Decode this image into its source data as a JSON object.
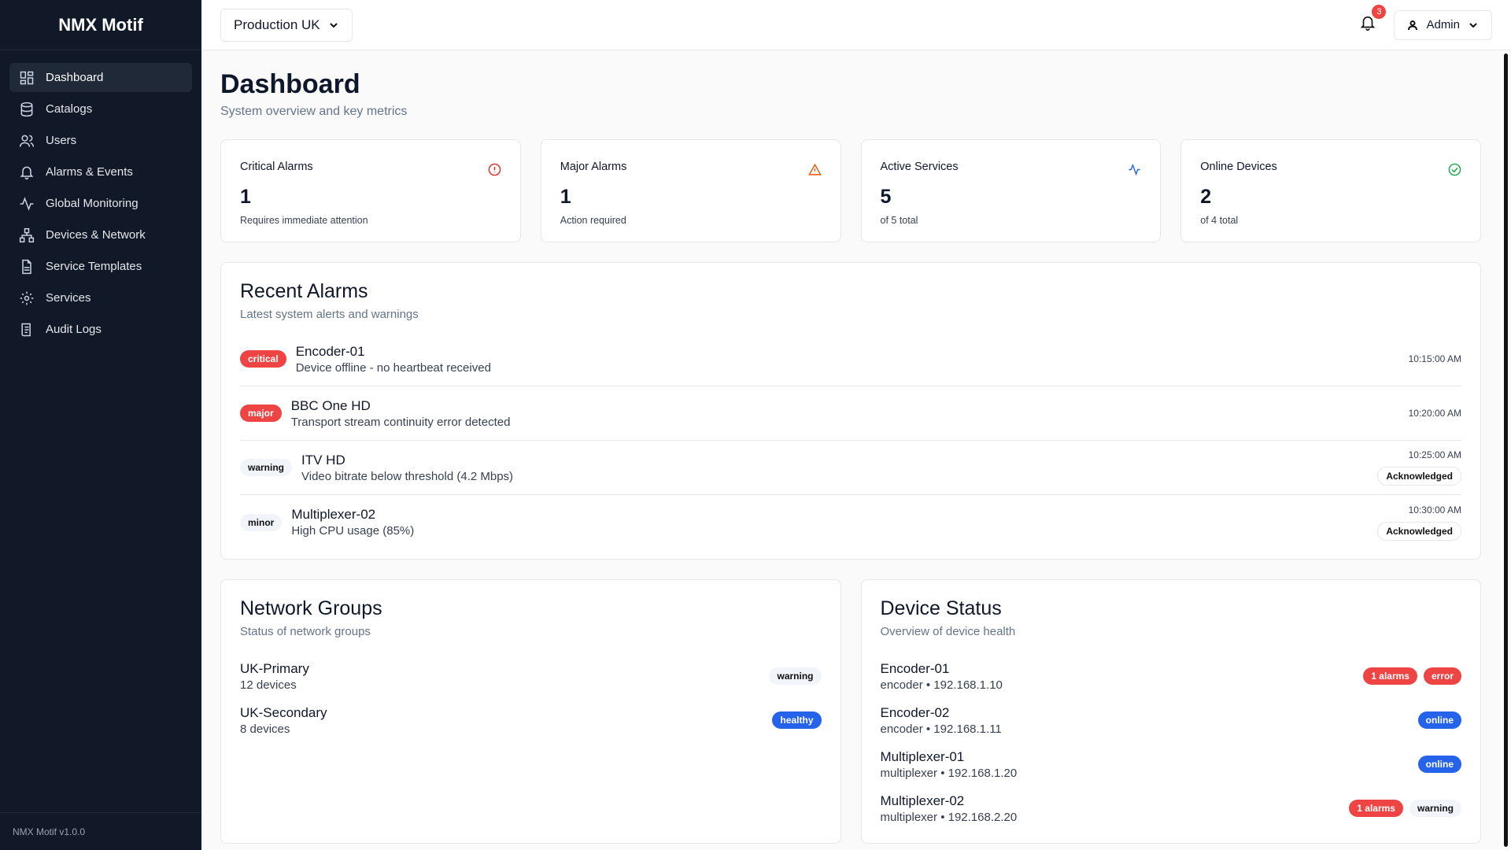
{
  "sidebar": {
    "brand": "NMX Motif",
    "nav": [
      "Dashboard",
      "Catalogs",
      "Users",
      "Alarms & Events",
      "Global Monitoring",
      "Devices & Network",
      "Service Templates",
      "Services",
      "Audit Logs"
    ],
    "version": "NMX Motif v1.0.0"
  },
  "header": {
    "environment": "Production UK",
    "notifications": "3",
    "user": "Admin"
  },
  "page": {
    "title": "Dashboard",
    "subtitle": "System overview and key metrics"
  },
  "stats": [
    {
      "label": "Critical Alarms",
      "value": "1",
      "note": "Requires immediate attention"
    },
    {
      "label": "Major Alarms",
      "value": "1",
      "note": "Action required"
    },
    {
      "label": "Active Services",
      "value": "5",
      "note": "of 5 total"
    },
    {
      "label": "Online Devices",
      "value": "2",
      "note": "of 4 total"
    }
  ],
  "recent_alarms": {
    "title": "Recent Alarms",
    "subtitle": "Latest system alerts and warnings",
    "rows": [
      {
        "severity": "critical",
        "name": "Encoder-01",
        "message": "Device offline - no heartbeat received",
        "time": "10:15:00 AM"
      },
      {
        "severity": "major",
        "name": "BBC One HD",
        "message": "Transport stream continuity error detected",
        "time": "10:20:00 AM"
      },
      {
        "severity": "warning",
        "name": "ITV HD",
        "message": "Video bitrate below threshold (4.2 Mbps)",
        "time": "10:25:00 AM",
        "status": "Acknowledged"
      },
      {
        "severity": "minor",
        "name": "Multiplexer-02",
        "message": "High CPU usage (85%)",
        "time": "10:30:00 AM",
        "status": "Acknowledged"
      }
    ]
  },
  "network_groups": {
    "title": "Network Groups",
    "subtitle": "Status of network groups",
    "rows": [
      {
        "name": "UK-Primary",
        "detail": "12 devices",
        "status": "warning"
      },
      {
        "name": "UK-Secondary",
        "detail": "8 devices",
        "status": "healthy"
      }
    ]
  },
  "device_status": {
    "title": "Device Status",
    "subtitle": "Overview of device health",
    "rows": [
      {
        "name": "Encoder-01",
        "detail": "encoder • 192.168.1.10",
        "alarms": "1 alarms",
        "status": "error"
      },
      {
        "name": "Encoder-02",
        "detail": "encoder • 192.168.1.11",
        "status": "online"
      },
      {
        "name": "Multiplexer-01",
        "detail": "multiplexer • 192.168.1.20",
        "status": "online"
      },
      {
        "name": "Multiplexer-02",
        "detail": "multiplexer • 192.168.2.20",
        "alarms": "1 alarms",
        "status": "warning"
      }
    ]
  }
}
